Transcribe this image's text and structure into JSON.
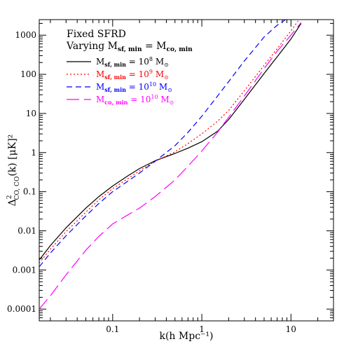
{
  "chart_data": {
    "type": "line",
    "xscale": "log",
    "yscale": "log",
    "xlim": [
      0.015,
      30
    ],
    "ylim": [
      5e-05,
      2500
    ],
    "xlabel": "k(h Mpc⁻¹)",
    "ylabel_main": "Δ",
    "ylabel_sup": "2",
    "ylabel_sub": "CO, CO",
    "ylabel_rest": "(k) [μK]²",
    "x_ticks": [
      {
        "value": 0.1,
        "label": "0.1"
      },
      {
        "value": 1,
        "label": "1"
      },
      {
        "value": 10,
        "label": "10"
      }
    ],
    "y_ticks": [
      {
        "value": 0.0001,
        "label": "0.0001"
      },
      {
        "value": 0.001,
        "label": "0.001"
      },
      {
        "value": 0.01,
        "label": "0.01"
      },
      {
        "value": 0.1,
        "label": "0.1"
      },
      {
        "value": 1,
        "label": "1"
      },
      {
        "value": 10,
        "label": "10"
      },
      {
        "value": 100,
        "label": "100"
      },
      {
        "value": 1000,
        "label": "1000"
      }
    ],
    "annotations": [
      "Fixed SFRD",
      "Varying M",
      "sf, min",
      " = M",
      "co, min"
    ],
    "series": [
      {
        "color": "#000000",
        "dash": "",
        "legend": {
          "main": "M",
          "sub": "sf, min",
          "eq": " = 10",
          "exp": "8",
          "unit": " M",
          "unit_sub": "⊙"
        },
        "x": [
          0.015,
          0.02,
          0.03,
          0.05,
          0.07,
          0.1,
          0.15,
          0.2,
          0.3,
          0.5,
          0.7,
          1.0,
          1.5,
          2.0,
          3.0,
          5.0,
          7.0,
          10.0,
          13.0
        ],
        "y": [
          0.0018,
          0.0042,
          0.012,
          0.038,
          0.075,
          0.14,
          0.26,
          0.39,
          0.62,
          0.95,
          1.3,
          1.9,
          3.5,
          7.0,
          23,
          105,
          280,
          800,
          2000
        ]
      },
      {
        "color": "#ff0000",
        "dash": "2,3",
        "legend": {
          "main": "M",
          "sub": "sf, min",
          "eq": " = 10",
          "exp": "9",
          "unit": " M",
          "unit_sub": "⊙"
        },
        "x": [
          0.015,
          0.02,
          0.03,
          0.05,
          0.07,
          0.1,
          0.15,
          0.2,
          0.3,
          0.5,
          0.7,
          1.0,
          1.5,
          2.0,
          3.0,
          5.0,
          7.0,
          10.0,
          12.0
        ],
        "y": [
          0.0015,
          0.0034,
          0.0095,
          0.03,
          0.062,
          0.12,
          0.22,
          0.34,
          0.6,
          1.05,
          1.7,
          3.0,
          6.3,
          12,
          38,
          170,
          450,
          1300,
          2300
        ]
      },
      {
        "color": "#0000ff",
        "dash": "8,5",
        "legend": {
          "main": "M",
          "sub": "sf, min",
          "eq": " = 10",
          "exp": "10",
          "unit": " M",
          "unit_sub": "⊙"
        },
        "x": [
          0.015,
          0.02,
          0.03,
          0.05,
          0.07,
          0.1,
          0.15,
          0.2,
          0.3,
          0.5,
          0.7,
          1.0,
          1.5,
          2.0,
          3.0,
          5.0,
          7.0,
          8.7
        ],
        "y": [
          0.0012,
          0.0027,
          0.0075,
          0.024,
          0.05,
          0.1,
          0.19,
          0.3,
          0.6,
          1.5,
          3.3,
          8.5,
          28,
          65,
          220,
          900,
          1800,
          2500
        ]
      },
      {
        "color": "#ff00ff",
        "dash": "18,7",
        "legend": {
          "main": "M",
          "sub": "co, min",
          "eq": " = 10",
          "exp": "10",
          "unit": " M",
          "unit_sub": "⊙"
        },
        "x": [
          0.015,
          0.02,
          0.03,
          0.05,
          0.07,
          0.1,
          0.15,
          0.2,
          0.3,
          0.5,
          0.7,
          1.0,
          1.5,
          2.0,
          3.0,
          5.0,
          7.0,
          10.0,
          13.0
        ],
        "y": [
          0.0001,
          0.00022,
          0.00075,
          0.0032,
          0.0072,
          0.015,
          0.026,
          0.038,
          0.075,
          0.2,
          0.45,
          1.1,
          3.3,
          8.0,
          28,
          140,
          390,
          1000,
          2100
        ]
      }
    ]
  }
}
